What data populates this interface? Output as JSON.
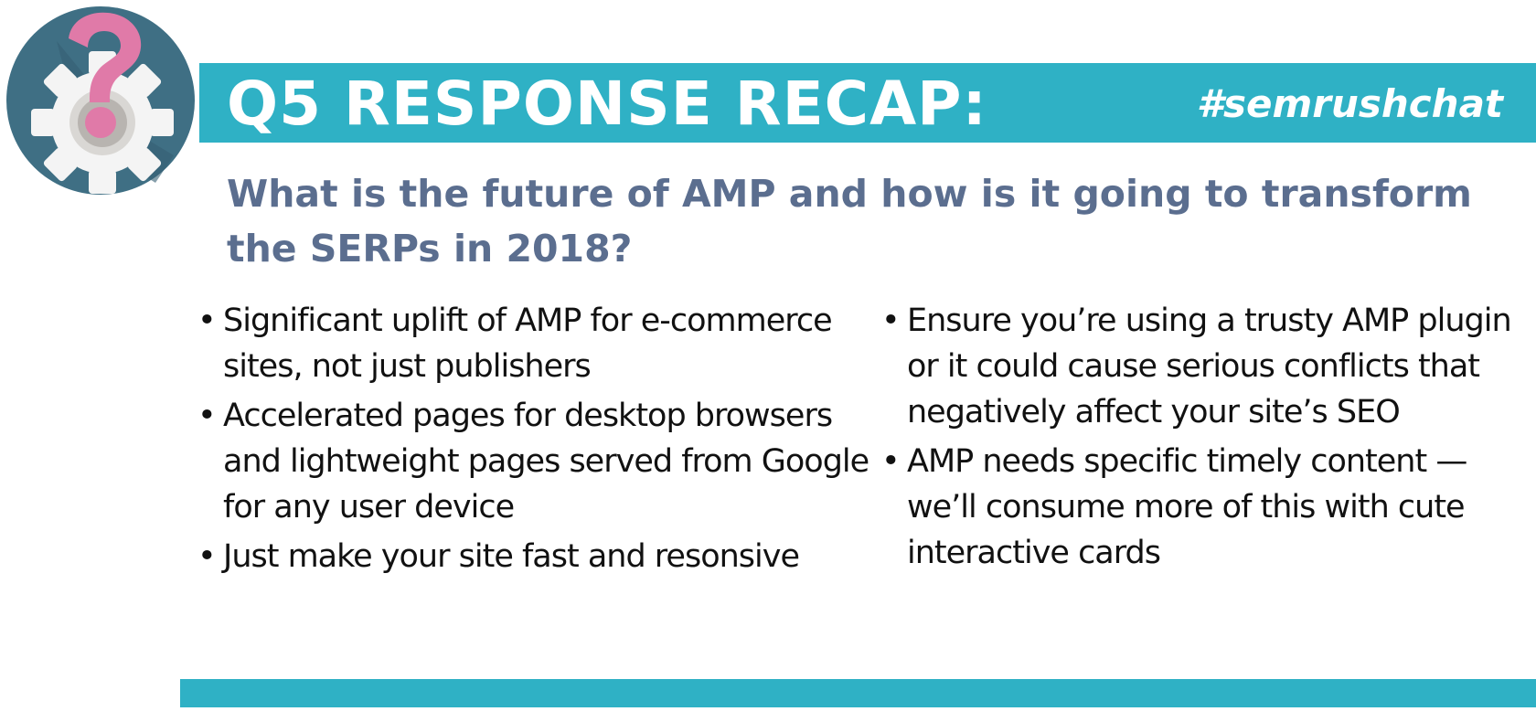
{
  "header": {
    "title": "Q5 RESPONSE RECAP:",
    "hashtag": "#semrushchat",
    "bar_color": "#2fb1c5"
  },
  "logo": {
    "icon": "question-gear-icon",
    "circle_color": "#3f6f84",
    "gear_color": "#f4f4f4",
    "question_color": "#e07aa8"
  },
  "question": "What is the future of AMP and how is it going to transform the SERPs in 2018?",
  "bullets": {
    "symbol": "•",
    "left": [
      "Significant uplift of AMP for e-commerce sites, not just publishers",
      "Accelerated pages for desktop browsers and lightweight pages served from Google for any user device",
      "Just make your site fast and resonsive"
    ],
    "right": [
      "Ensure you’re using a trusty AMP plugin or it could cause serious conflicts that negatively affect your site’s SEO",
      "AMP needs specific timely content — we’ll consume more of this with cute interactive cards"
    ]
  }
}
